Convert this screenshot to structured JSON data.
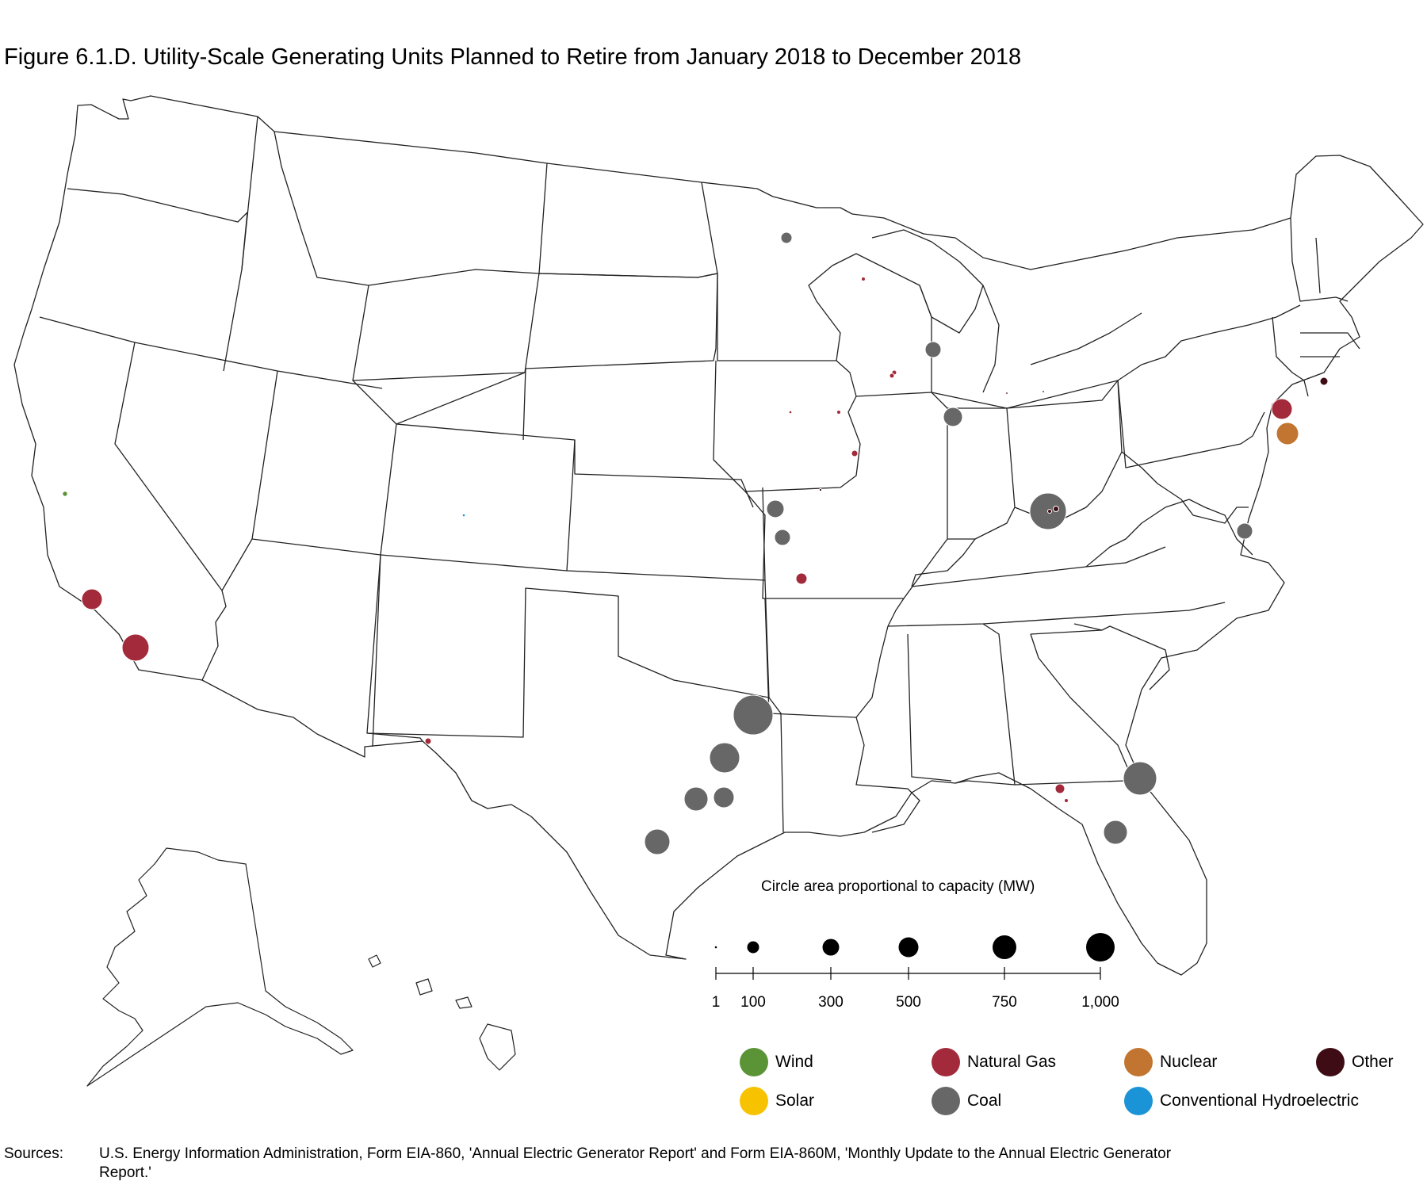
{
  "title": "Figure 6.1.D. Utility-Scale Generating Units Planned to Retire from January 2018 to December 2018",
  "colors": {
    "wind": "#5b9337",
    "natural_gas": "#a22a3a",
    "nuclear": "#c27530",
    "other": "#3d0c14",
    "solar": "#f7c300",
    "coal": "#676767",
    "hydro": "#1a93d7",
    "state_line": "#222222"
  },
  "size_legend": {
    "title": "Circle area proportional to capacity (MW)",
    "ticks": [
      "1",
      "100",
      "300",
      "500",
      "750",
      "1,000"
    ]
  },
  "fuel_legend": [
    {
      "key": "wind",
      "label": "Wind"
    },
    {
      "key": "natural_gas",
      "label": "Natural Gas"
    },
    {
      "key": "nuclear",
      "label": "Nuclear"
    },
    {
      "key": "other",
      "label": "Other"
    },
    {
      "key": "solar",
      "label": "Solar"
    },
    {
      "key": "coal",
      "label": "Coal"
    },
    {
      "key": "hydro",
      "label": "Conventional Hydroelectric"
    }
  ],
  "sources": {
    "label": "Sources:",
    "text": "U.S. Energy Information Administration, Form EIA-860, 'Annual Electric Generator Report' and Form EIA-860M, 'Monthly Update to the Annual Electric Generator Report.'"
  }
}
